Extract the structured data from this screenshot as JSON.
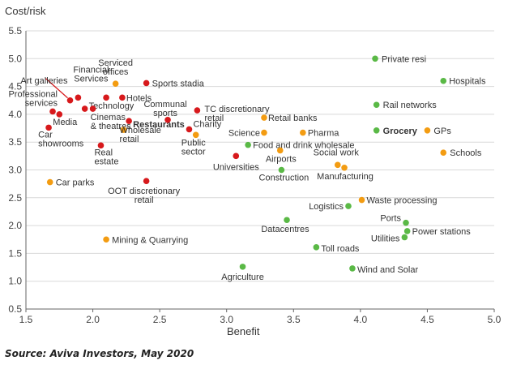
{
  "chart_data": {
    "type": "scatter",
    "ylabel": "Cost/risk",
    "xlabel": "Benefit",
    "xlim": [
      1.5,
      5.0
    ],
    "ylim": [
      0.5,
      5.5
    ],
    "xticks": [
      "1.5",
      "2.0",
      "2.5",
      "3.0",
      "3.5",
      "4.0",
      "4.5",
      "5.0"
    ],
    "yticks": [
      "0.5",
      "1.0",
      "1.5",
      "2.0",
      "2.5",
      "3.0",
      "3.5",
      "4.0",
      "4.5",
      "5.0",
      "5.5"
    ],
    "grid": "horizontal",
    "legend": "none",
    "colors": {
      "red": "#d7191c",
      "orange": "#f39c12",
      "green": "#5ab946"
    },
    "points": [
      {
        "label": "Art galleries",
        "x": 1.83,
        "y": 4.25,
        "color": "red"
      },
      {
        "label": "Financial Services",
        "x": 1.89,
        "y": 4.3,
        "color": "red"
      },
      {
        "label": "Professional services",
        "x": 1.7,
        "y": 4.05,
        "color": "red"
      },
      {
        "label": "Media",
        "x": 1.75,
        "y": 4.0,
        "color": "red"
      },
      {
        "label": "Car showrooms",
        "x": 1.67,
        "y": 3.76,
        "color": "red"
      },
      {
        "label": "Technology",
        "x": 1.94,
        "y": 4.1,
        "color": "red"
      },
      {
        "label": "",
        "x": 2.1,
        "y": 4.3,
        "color": "red"
      },
      {
        "label": "Hotels",
        "x": 2.22,
        "y": 4.3,
        "color": "red"
      },
      {
        "label": "Serviced offices",
        "x": 2.17,
        "y": 4.55,
        "color": "orange"
      },
      {
        "label": "Sports stadia",
        "x": 2.4,
        "y": 4.56,
        "color": "red"
      },
      {
        "label": "Cinemas & theatres",
        "x": 2.0,
        "y": 4.1,
        "color": "red"
      },
      {
        "label": "Restaurants",
        "x": 2.27,
        "y": 3.88,
        "color": "red"
      },
      {
        "label": "Communal sports",
        "x": 2.56,
        "y": 3.9,
        "color": "red"
      },
      {
        "label": "Wholesale retail",
        "x": 2.23,
        "y": 3.72,
        "color": "orange"
      },
      {
        "label": "Real estate",
        "x": 2.06,
        "y": 3.44,
        "color": "red"
      },
      {
        "label": "TC discretionary retail",
        "x": 2.78,
        "y": 4.07,
        "color": "red"
      },
      {
        "label": "Charity",
        "x": 2.72,
        "y": 3.73,
        "color": "red"
      },
      {
        "label": "Public sector",
        "x": 2.77,
        "y": 3.63,
        "color": "orange"
      },
      {
        "label": "Car parks",
        "x": 1.68,
        "y": 2.78,
        "color": "orange"
      },
      {
        "label": "OOT discretionary retail",
        "x": 2.4,
        "y": 2.8,
        "color": "red"
      },
      {
        "label": "Mining & Quarrying",
        "x": 2.1,
        "y": 1.75,
        "color": "orange"
      },
      {
        "label": "Universities",
        "x": 3.07,
        "y": 3.25,
        "color": "red"
      },
      {
        "label": "Retail banks",
        "x": 3.28,
        "y": 3.94,
        "color": "orange"
      },
      {
        "label": "Science",
        "x": 3.28,
        "y": 3.67,
        "color": "orange"
      },
      {
        "label": "Food and drink wholesale",
        "x": 3.16,
        "y": 3.45,
        "color": "green"
      },
      {
        "label": "Airports",
        "x": 3.4,
        "y": 3.35,
        "color": "orange"
      },
      {
        "label": "Construction",
        "x": 3.41,
        "y": 3.0,
        "color": "green"
      },
      {
        "label": "Pharma",
        "x": 3.57,
        "y": 3.67,
        "color": "orange"
      },
      {
        "label": "Social work",
        "x": 3.83,
        "y": 3.09,
        "color": "orange"
      },
      {
        "label": "Manufacturing",
        "x": 3.88,
        "y": 3.04,
        "color": "orange"
      },
      {
        "label": "Datacentres",
        "x": 3.45,
        "y": 2.1,
        "color": "green"
      },
      {
        "label": "Toll roads",
        "x": 3.67,
        "y": 1.61,
        "color": "green"
      },
      {
        "label": "Logistics",
        "x": 3.91,
        "y": 2.35,
        "color": "green"
      },
      {
        "label": "Waste processing",
        "x": 4.01,
        "y": 2.46,
        "color": "orange"
      },
      {
        "label": "Wind and Solar",
        "x": 3.94,
        "y": 1.23,
        "color": "green"
      },
      {
        "label": "Agriculture",
        "x": 3.12,
        "y": 1.26,
        "color": "green"
      },
      {
        "label": "Private resi",
        "x": 4.11,
        "y": 5.0,
        "color": "green"
      },
      {
        "label": "Hospitals",
        "x": 4.62,
        "y": 4.6,
        "color": "green"
      },
      {
        "label": "Rail networks",
        "x": 4.12,
        "y": 4.17,
        "color": "green"
      },
      {
        "label": "Grocery",
        "x": 4.12,
        "y": 3.71,
        "color": "green"
      },
      {
        "label": "GPs",
        "x": 4.5,
        "y": 3.71,
        "color": "orange"
      },
      {
        "label": "Schools",
        "x": 4.62,
        "y": 3.31,
        "color": "orange"
      },
      {
        "label": "Ports",
        "x": 4.34,
        "y": 2.05,
        "color": "green"
      },
      {
        "label": "Power stations",
        "x": 4.35,
        "y": 1.9,
        "color": "green"
      },
      {
        "label": "Utilities",
        "x": 4.33,
        "y": 1.79,
        "color": "green"
      }
    ]
  },
  "footer": {
    "source": "Source: Aviva Investors, May 2020"
  }
}
